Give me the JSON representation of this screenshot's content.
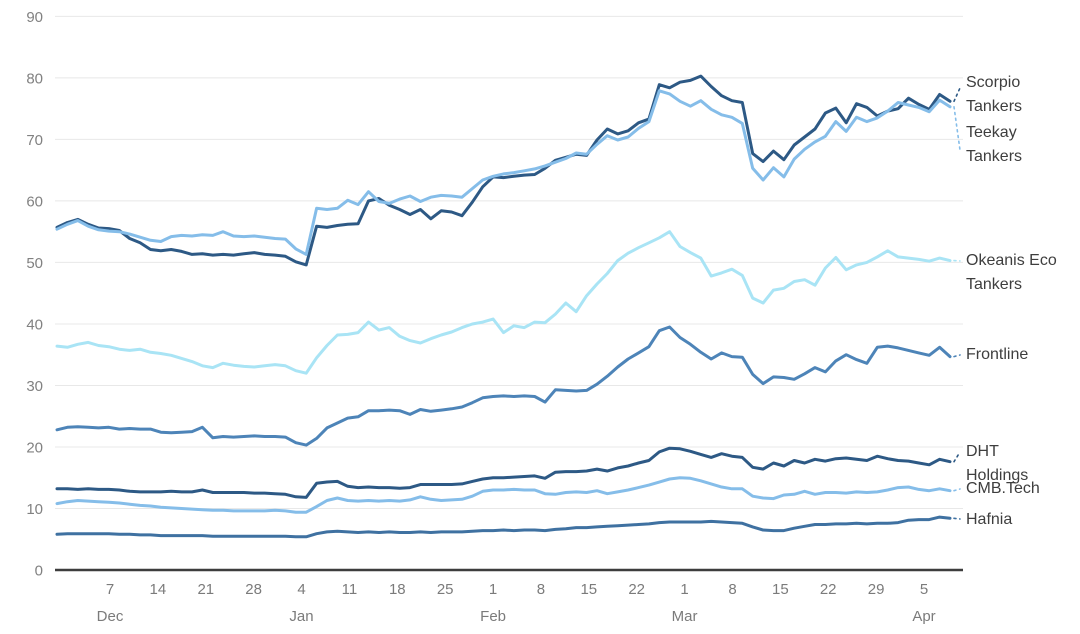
{
  "chart_data": {
    "type": "line",
    "title": "",
    "xlabel": "",
    "ylabel": "",
    "grid": "horizontal-only",
    "legend_position": "right-edge-labels",
    "y_axis": {
      "min": 0,
      "max": 90,
      "step": 10,
      "ticks": [
        "0",
        "10",
        "20",
        "30",
        "40",
        "50",
        "60",
        "70",
        "80",
        "90"
      ]
    },
    "x_axis": {
      "day_ticks": [
        "7",
        "14",
        "21",
        "28",
        "4",
        "11",
        "18",
        "25",
        "1",
        "8",
        "15",
        "22",
        "1",
        "8",
        "15",
        "22",
        "29",
        "5"
      ],
      "month_labels": [
        {
          "label": "Dec",
          "tick_index": 0
        },
        {
          "label": "Jan",
          "tick_index": 4
        },
        {
          "label": "Feb",
          "tick_index": 8
        },
        {
          "label": "Mar",
          "tick_index": 12
        },
        {
          "label": "Apr",
          "tick_index": 17
        }
      ]
    },
    "style": {
      "grid_color": "#e8e8e8",
      "axis_line_color": "#3d3d3d",
      "axis_text_color": "#7b7b7b",
      "label_text_color": "#3e3e3e",
      "background": "#ffffff"
    },
    "series": [
      {
        "name": "Scorpio Tankers",
        "label_lines": [
          "Scorpio",
          "Tankers"
        ],
        "color": "#2d5985",
        "values": [
          55.7,
          56.5,
          57.0,
          56.2,
          55.6,
          55.5,
          55.2,
          53.9,
          53.2,
          52.1,
          51.9,
          52.1,
          51.8,
          51.3,
          51.4,
          51.2,
          51.3,
          51.2,
          51.4,
          51.6,
          51.3,
          51.2,
          51.0,
          50.1,
          49.6,
          55.9,
          55.7,
          56.0,
          56.2,
          56.3,
          60.0,
          60.4,
          59.3,
          58.6,
          57.8,
          58.6,
          57.1,
          58.4,
          58.2,
          57.6,
          59.8,
          62.3,
          63.9,
          63.8,
          64.0,
          64.2,
          64.3,
          65.3,
          66.6,
          67.1,
          67.6,
          67.4,
          69.9,
          71.7,
          70.9,
          71.4,
          72.7,
          73.3,
          78.9,
          78.4,
          79.3,
          79.6,
          80.3,
          78.6,
          77.1,
          76.3,
          76.0,
          67.7,
          66.4,
          68.1,
          66.7,
          69.1,
          70.4,
          71.7,
          74.3,
          75.1,
          72.7,
          75.8,
          75.2,
          73.8,
          74.6,
          75.0,
          76.7,
          75.7,
          74.9,
          77.3,
          76.2
        ]
      },
      {
        "name": "Teekay Tankers",
        "label_lines": [
          "Teekay",
          "Tankers"
        ],
        "color": "#85bde9",
        "values": [
          55.4,
          56.2,
          56.8,
          55.9,
          55.3,
          55.1,
          55.0,
          54.6,
          54.1,
          53.6,
          53.4,
          54.2,
          54.4,
          54.3,
          54.5,
          54.4,
          55.0,
          54.3,
          54.2,
          54.3,
          54.1,
          53.9,
          53.8,
          52.2,
          51.3,
          58.8,
          58.6,
          58.8,
          60.1,
          59.4,
          61.5,
          59.9,
          59.6,
          60.3,
          60.8,
          59.9,
          60.6,
          60.9,
          60.8,
          60.6,
          62.0,
          63.4,
          64.0,
          64.4,
          64.6,
          64.9,
          65.2,
          65.7,
          66.3,
          66.9,
          67.8,
          67.6,
          69.2,
          70.6,
          69.9,
          70.4,
          71.8,
          72.9,
          77.9,
          77.4,
          76.2,
          75.4,
          76.3,
          74.9,
          74.0,
          73.6,
          72.6,
          65.3,
          63.4,
          65.4,
          63.9,
          66.8,
          68.4,
          69.6,
          70.5,
          72.9,
          71.3,
          73.6,
          72.9,
          73.5,
          74.6,
          76.0,
          75.6,
          75.2,
          74.5,
          76.4,
          75.3
        ]
      },
      {
        "name": "Okeanis Eco Tankers",
        "label_lines": [
          "Okeanis Eco",
          "Tankers"
        ],
        "color": "#a9e4f5",
        "values": [
          36.4,
          36.2,
          36.7,
          37.0,
          36.5,
          36.3,
          35.9,
          35.7,
          35.9,
          35.4,
          35.2,
          34.9,
          34.4,
          33.9,
          33.2,
          32.9,
          33.6,
          33.3,
          33.1,
          33.0,
          33.2,
          33.4,
          33.2,
          32.4,
          32.0,
          34.5,
          36.5,
          38.2,
          38.3,
          38.6,
          40.3,
          39.0,
          39.4,
          38.0,
          37.3,
          36.9,
          37.6,
          38.2,
          38.7,
          39.4,
          40.0,
          40.3,
          40.8,
          38.6,
          39.7,
          39.4,
          40.3,
          40.2,
          41.6,
          43.4,
          42.0,
          44.6,
          46.5,
          48.2,
          50.3,
          51.5,
          52.4,
          53.2,
          54.0,
          55.0,
          52.6,
          51.6,
          50.7,
          47.8,
          48.3,
          48.9,
          47.9,
          44.2,
          43.4,
          45.5,
          45.8,
          46.9,
          47.2,
          46.3,
          49.1,
          50.8,
          48.8,
          49.6,
          50.0,
          50.9,
          51.9,
          50.9,
          50.7,
          50.5,
          50.2,
          50.7,
          50.3
        ]
      },
      {
        "name": "Frontline",
        "label_lines": [
          "Frontline"
        ],
        "color": "#4d84b8",
        "values": [
          22.8,
          23.2,
          23.3,
          23.2,
          23.1,
          23.2,
          22.9,
          23.0,
          22.9,
          22.9,
          22.4,
          22.3,
          22.4,
          22.5,
          23.2,
          21.5,
          21.7,
          21.6,
          21.7,
          21.8,
          21.7,
          21.7,
          21.6,
          20.7,
          20.3,
          21.4,
          23.1,
          23.9,
          24.7,
          24.9,
          25.9,
          25.9,
          26.0,
          25.9,
          25.3,
          26.1,
          25.8,
          26.0,
          26.2,
          26.5,
          27.2,
          28.0,
          28.2,
          28.3,
          28.2,
          28.3,
          28.2,
          27.3,
          29.3,
          29.2,
          29.1,
          29.2,
          30.2,
          31.5,
          33.0,
          34.3,
          35.3,
          36.3,
          38.9,
          39.5,
          37.8,
          36.7,
          35.4,
          34.3,
          35.3,
          34.7,
          34.6,
          31.8,
          30.3,
          31.4,
          31.3,
          31.0,
          31.9,
          32.9,
          32.2,
          34.0,
          35.0,
          34.2,
          33.6,
          36.2,
          36.4,
          36.1,
          35.7,
          35.3,
          34.9,
          36.2,
          34.7
        ]
      },
      {
        "name": "DHT Holdings",
        "label_lines": [
          "DHT",
          "Holdings"
        ],
        "color": "#2d5985",
        "values": [
          13.2,
          13.2,
          13.1,
          13.2,
          13.1,
          13.1,
          13.0,
          12.8,
          12.7,
          12.7,
          12.7,
          12.8,
          12.7,
          12.7,
          13.0,
          12.6,
          12.6,
          12.6,
          12.6,
          12.5,
          12.5,
          12.4,
          12.3,
          11.9,
          11.8,
          14.1,
          14.3,
          14.4,
          13.6,
          13.4,
          13.5,
          13.4,
          13.4,
          13.3,
          13.4,
          13.9,
          13.9,
          13.9,
          13.9,
          14.0,
          14.4,
          14.8,
          15.0,
          15.0,
          15.1,
          15.2,
          15.3,
          14.9,
          15.9,
          16.0,
          16.0,
          16.1,
          16.4,
          16.1,
          16.6,
          16.9,
          17.4,
          17.8,
          19.2,
          19.8,
          19.7,
          19.3,
          18.8,
          18.3,
          18.9,
          18.5,
          18.3,
          16.7,
          16.4,
          17.4,
          16.9,
          17.8,
          17.4,
          18.0,
          17.7,
          18.1,
          18.2,
          18.0,
          17.8,
          18.5,
          18.1,
          17.8,
          17.7,
          17.4,
          17.1,
          18.0,
          17.6
        ]
      },
      {
        "name": "CMB.Tech",
        "label_lines": [
          "CMB.Tech"
        ],
        "color": "#85bde9",
        "values": [
          10.8,
          11.1,
          11.3,
          11.2,
          11.1,
          11.0,
          10.9,
          10.7,
          10.5,
          10.4,
          10.2,
          10.1,
          10.0,
          9.9,
          9.8,
          9.7,
          9.7,
          9.6,
          9.6,
          9.6,
          9.6,
          9.7,
          9.6,
          9.4,
          9.4,
          10.3,
          11.3,
          11.7,
          11.3,
          11.2,
          11.3,
          11.2,
          11.3,
          11.2,
          11.4,
          11.9,
          11.5,
          11.3,
          11.4,
          11.5,
          12.0,
          12.8,
          13.0,
          13.0,
          13.1,
          13.0,
          13.0,
          12.4,
          12.3,
          12.6,
          12.7,
          12.6,
          12.9,
          12.4,
          12.7,
          13.0,
          13.4,
          13.8,
          14.3,
          14.8,
          15.0,
          14.9,
          14.5,
          14.0,
          13.5,
          13.2,
          13.2,
          12.0,
          11.7,
          11.6,
          12.2,
          12.3,
          12.8,
          12.3,
          12.6,
          12.6,
          12.5,
          12.7,
          12.6,
          12.7,
          13.0,
          13.4,
          13.5,
          13.1,
          12.9,
          13.2,
          12.9
        ]
      },
      {
        "name": "Hafnia",
        "label_lines": [
          "Hafnia"
        ],
        "color": "#3f71a1",
        "values": [
          5.8,
          5.9,
          5.9,
          5.9,
          5.9,
          5.9,
          5.8,
          5.8,
          5.7,
          5.7,
          5.6,
          5.6,
          5.6,
          5.6,
          5.6,
          5.5,
          5.5,
          5.5,
          5.5,
          5.5,
          5.5,
          5.5,
          5.5,
          5.4,
          5.4,
          5.9,
          6.2,
          6.3,
          6.2,
          6.1,
          6.2,
          6.1,
          6.2,
          6.1,
          6.1,
          6.2,
          6.1,
          6.2,
          6.2,
          6.2,
          6.3,
          6.4,
          6.4,
          6.5,
          6.4,
          6.5,
          6.5,
          6.4,
          6.6,
          6.7,
          6.9,
          6.9,
          7.0,
          7.1,
          7.2,
          7.3,
          7.4,
          7.5,
          7.7,
          7.8,
          7.8,
          7.8,
          7.8,
          7.9,
          7.8,
          7.7,
          7.6,
          7.0,
          6.5,
          6.4,
          6.4,
          6.8,
          7.1,
          7.4,
          7.4,
          7.5,
          7.5,
          7.6,
          7.5,
          7.6,
          7.6,
          7.7,
          8.1,
          8.2,
          8.2,
          8.6,
          8.4
        ]
      }
    ]
  }
}
